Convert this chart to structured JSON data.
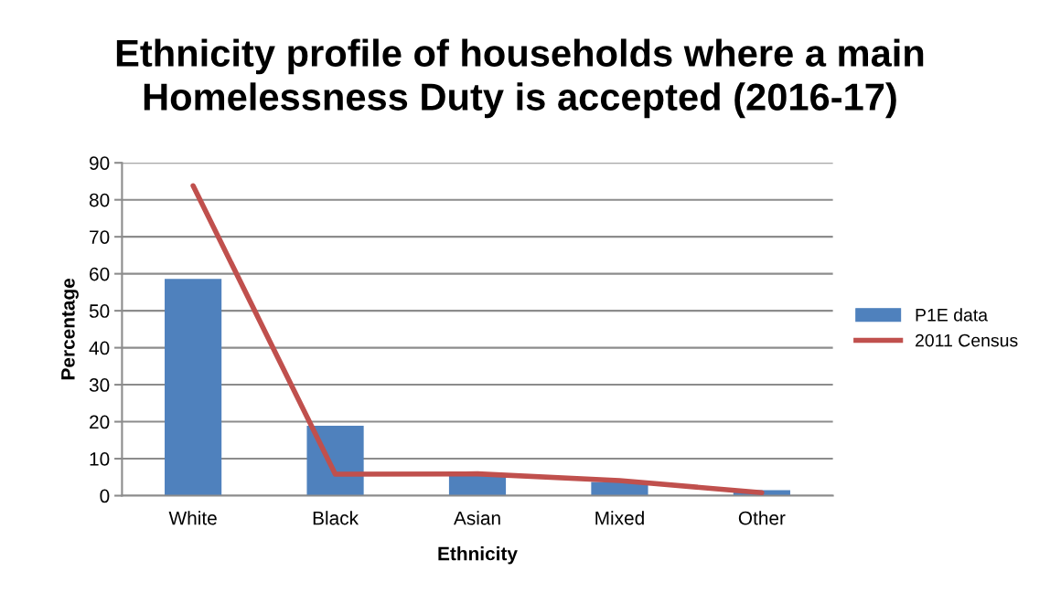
{
  "chart_data": {
    "type": "bar",
    "title": "Ethnicity profile of households where a main\nHomelessness Duty is accepted (2016-17)",
    "xlabel": "Ethnicity",
    "ylabel": "Percentage",
    "categories": [
      "White",
      "Black",
      "Asian",
      "Mixed",
      "Other"
    ],
    "series": [
      {
        "name": "P1E data",
        "color": "#4f81bd",
        "values": [
          58.6,
          18.9,
          5.4,
          3.7,
          1.5
        ]
      },
      {
        "name": "2011 Census",
        "type": "line",
        "color": "#c0504d",
        "values": [
          83.8,
          5.8,
          5.9,
          4.1,
          0.8
        ]
      }
    ],
    "ylim": [
      0,
      90
    ],
    "yticks": [
      0,
      10,
      20,
      30,
      40,
      50,
      60,
      70,
      80,
      90
    ],
    "grid": "y",
    "legend": "right"
  }
}
